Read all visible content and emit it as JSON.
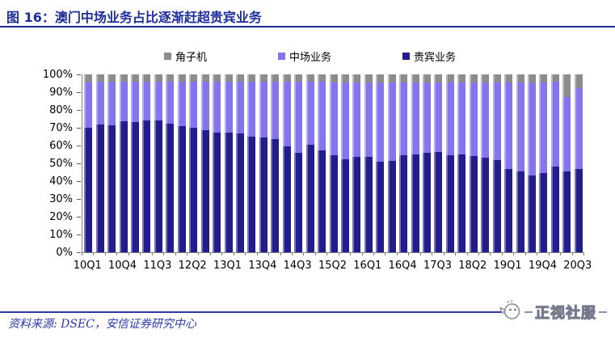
{
  "header": {
    "title": "图 16：澳门中场业务占比逐渐赶超贵宾业务"
  },
  "colors": {
    "accent_blue": "#1d2d9c",
    "vip_navy": "#221c8c",
    "mass_purple": "#8474ee",
    "slot_gray": "#8c8c8c",
    "axis_gray": "#808080"
  },
  "chart_data": {
    "type": "bar",
    "stacked": true,
    "title": "澳门中场业务占比逐渐赶超贵宾业务",
    "unit": "%",
    "ylim": [
      0,
      100
    ],
    "grid": false,
    "legend_position": "top-center",
    "y_ticks": [
      "100%",
      "90%",
      "80%",
      "70%",
      "60%",
      "50%",
      "40%",
      "30%",
      "20%",
      "10%",
      "0%"
    ],
    "categories": [
      "10Q1",
      "10Q2",
      "10Q3",
      "10Q4",
      "11Q1",
      "11Q2",
      "11Q3",
      "11Q4",
      "12Q1",
      "12Q2",
      "12Q3",
      "12Q4",
      "13Q1",
      "13Q2",
      "13Q3",
      "13Q4",
      "14Q1",
      "14Q2",
      "14Q3",
      "14Q4",
      "15Q1",
      "15Q2",
      "15Q3",
      "15Q4",
      "16Q1",
      "16Q2",
      "16Q3",
      "16Q4",
      "17Q1",
      "17Q2",
      "17Q3",
      "17Q4",
      "18Q1",
      "18Q2",
      "18Q3",
      "18Q4",
      "19Q1",
      "19Q2",
      "19Q3",
      "19Q4",
      "20Q1",
      "20Q2",
      "20Q3"
    ],
    "x_tick_labels": [
      "10Q1",
      "10Q4",
      "11Q3",
      "12Q2",
      "13Q1",
      "13Q4",
      "14Q3",
      "15Q2",
      "16Q1",
      "16Q4",
      "17Q3",
      "18Q2",
      "19Q1",
      "19Q4",
      "20Q3"
    ],
    "legend": [
      {
        "label": "角子机",
        "slug": "slot",
        "color": "#8c8c8c"
      },
      {
        "label": "中场业务",
        "slug": "mass",
        "color": "#8474ee"
      },
      {
        "label": "贵宾业务",
        "slug": "vip",
        "color": "#221c8c"
      }
    ],
    "stack_order_bottom_to_top": [
      "贵宾业务",
      "中场业务",
      "角子机"
    ],
    "series": [
      {
        "name": "贵宾业务",
        "slug": "vip",
        "color": "#221c8c",
        "values": [
          70,
          72,
          71.5,
          73.5,
          73,
          74,
          74,
          72.5,
          71,
          70,
          68.5,
          67.5,
          67.5,
          67,
          65,
          64.5,
          63.5,
          59.5,
          56,
          60.5,
          57.5,
          54.5,
          52.5,
          53.5,
          53.5,
          51,
          51.5,
          54.5,
          55,
          56,
          56.5,
          54.5,
          55,
          54,
          53,
          52,
          47,
          45.5,
          43,
          44.5,
          48,
          45.5,
          47
        ]
      },
      {
        "name": "中场业务",
        "slug": "mass",
        "color": "#8474ee",
        "values": [
          25.5,
          24,
          24.5,
          22.5,
          23,
          22,
          22,
          23.5,
          25,
          26,
          27.5,
          28.5,
          28.5,
          29,
          31,
          31.5,
          32.5,
          36.5,
          40,
          35.5,
          38.5,
          41,
          43,
          42,
          42,
          44.5,
          44,
          41,
          40.5,
          39.5,
          39,
          41,
          40.5,
          41.5,
          42.5,
          43.5,
          48.5,
          50,
          52.5,
          51,
          48,
          42,
          45.5
        ]
      },
      {
        "name": "角子机",
        "slug": "slot",
        "color": "#8c8c8c",
        "values": [
          4.5,
          4,
          4,
          4,
          4,
          4,
          4,
          4,
          4,
          4,
          4,
          4,
          4,
          4,
          4,
          4,
          4,
          4,
          4,
          4,
          4,
          4.5,
          4.5,
          4.5,
          4.5,
          4.5,
          4.5,
          4.5,
          4.5,
          4.5,
          4.5,
          4.5,
          4.5,
          4.5,
          4.5,
          4.5,
          4.5,
          4.5,
          4.5,
          4.5,
          4,
          12.5,
          7.5
        ]
      }
    ]
  },
  "footer": {
    "source": "资料来源: DSEC，安信证券研究中心",
    "watermark": "正视社服"
  }
}
